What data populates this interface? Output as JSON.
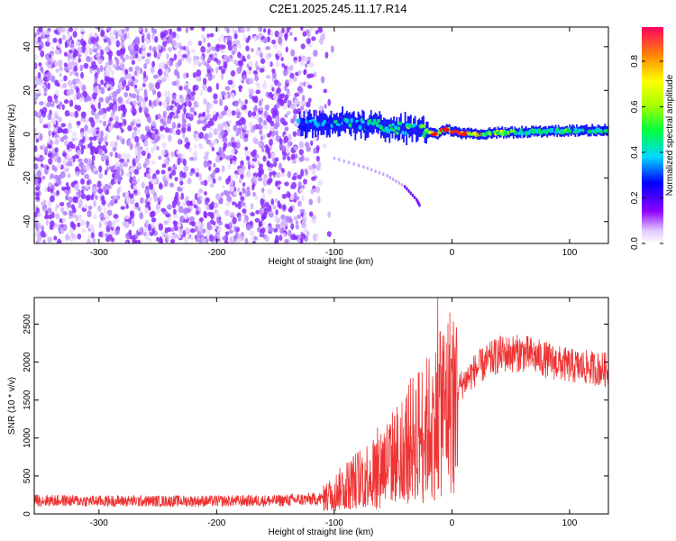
{
  "title": "C2E1.2025.245.11.17.R14",
  "colors": {
    "line": "#ee3333",
    "background": "#ffffff",
    "axis": "#000000"
  },
  "chart_data": [
    {
      "type": "heatmap",
      "title": "",
      "xlabel": "Height of straight line (km)",
      "ylabel": "Frequency (Hz)",
      "xlim": [
        -355,
        133
      ],
      "ylim": [
        -50,
        49
      ],
      "xticks": [
        -300,
        -200,
        -100,
        0,
        100
      ],
      "yticks": [
        -40,
        -20,
        0,
        20,
        40
      ],
      "colorbar": {
        "label": "Normalized spectral amplitude",
        "range": [
          0,
          0.95
        ],
        "ticks": [
          0,
          0.2,
          0.4,
          0.6,
          0.8
        ]
      },
      "features": {
        "noise_region": {
          "x": [
            -355,
            -110
          ],
          "y": [
            -50,
            49
          ],
          "amplitude": 0.1
        },
        "main_band": [
          {
            "x": -130,
            "y": 4,
            "amplitude": 0.3
          },
          {
            "x": -90,
            "y": 5,
            "amplitude": 0.35
          },
          {
            "x": -50,
            "y": 3,
            "amplitude": 0.45
          },
          {
            "x": -20,
            "y": 1,
            "amplitude": 0.6
          },
          {
            "x": -15,
            "y": 0,
            "amplitude": 0.92
          },
          {
            "x": -5,
            "y": 2,
            "amplitude": 0.88
          },
          {
            "x": 10,
            "y": 0,
            "amplitude": 0.85
          },
          {
            "x": 60,
            "y": 1,
            "amplitude": 0.5
          },
          {
            "x": 133,
            "y": 2,
            "amplitude": 0.45
          }
        ],
        "descending_trace": [
          {
            "x": -100,
            "y": -11
          },
          {
            "x": -75,
            "y": -15
          },
          {
            "x": -55,
            "y": -19
          },
          {
            "x": -40,
            "y": -24
          },
          {
            "x": -30,
            "y": -30
          },
          {
            "x": -27,
            "y": -33
          }
        ]
      }
    },
    {
      "type": "line",
      "title": "",
      "xlabel": "Height of straight line (km)",
      "ylabel": "SNR (10 * v/v)",
      "xlim": [
        -355,
        133
      ],
      "ylim": [
        0,
        2850
      ],
      "xticks": [
        -300,
        -200,
        -100,
        0,
        100
      ],
      "yticks": [
        0,
        500,
        1000,
        1500,
        2000,
        2500
      ],
      "envelope": [
        {
          "x": -355,
          "y": 180
        },
        {
          "x": -300,
          "y": 170
        },
        {
          "x": -200,
          "y": 170
        },
        {
          "x": -150,
          "y": 175
        },
        {
          "x": -110,
          "y": 200
        },
        {
          "x": -90,
          "y": 380
        },
        {
          "x": -70,
          "y": 550
        },
        {
          "x": -50,
          "y": 750
        },
        {
          "x": -30,
          "y": 1050
        },
        {
          "x": -15,
          "y": 1200
        },
        {
          "x": -5,
          "y": 1450
        },
        {
          "x": 5,
          "y": 1650
        },
        {
          "x": 20,
          "y": 1900
        },
        {
          "x": 40,
          "y": 2100
        },
        {
          "x": 60,
          "y": 2120
        },
        {
          "x": 80,
          "y": 2030
        },
        {
          "x": 100,
          "y": 1950
        },
        {
          "x": 133,
          "y": 1900
        }
      ],
      "spikes": [
        {
          "x": -12,
          "y": 2850
        },
        {
          "x": -10,
          "y": 2400
        },
        {
          "x": -8,
          "y": 2350
        },
        {
          "x": 0,
          "y": 2050
        }
      ]
    }
  ]
}
